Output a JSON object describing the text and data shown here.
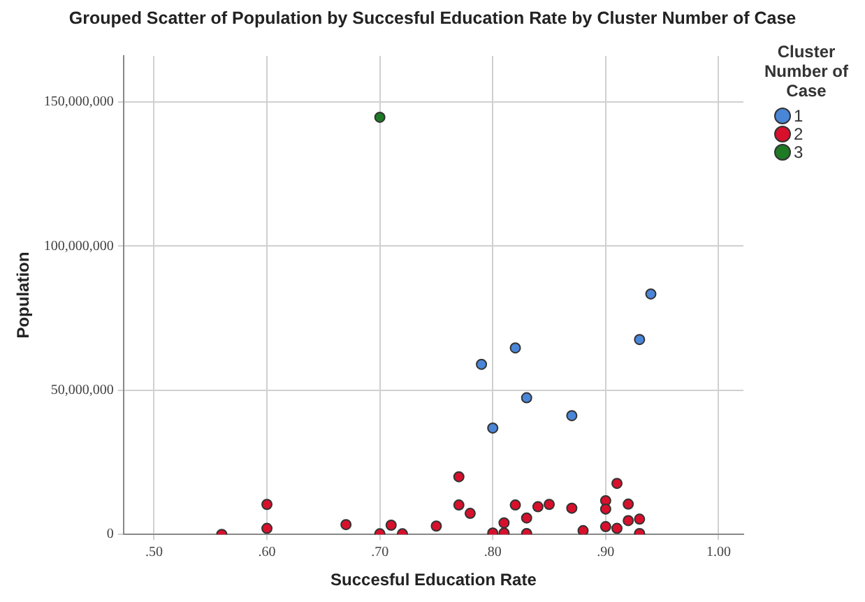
{
  "chart_data": {
    "type": "scatter",
    "title": "Grouped Scatter of Population by Succesful Education Rate by Cluster Number of Case",
    "xlabel": "Succesful Education Rate",
    "ylabel": "Population",
    "legend_title": "Cluster Number of Case",
    "legend": "top right",
    "grid": true,
    "marker": "circle",
    "xlim": [
      0.473,
      1.022
    ],
    "xticks": [
      {
        "value": 0.5,
        "label": ".50"
      },
      {
        "value": 0.6,
        "label": ".60"
      },
      {
        "value": 0.7,
        "label": ".70"
      },
      {
        "value": 0.8,
        "label": ".80"
      },
      {
        "value": 0.9,
        "label": ".90"
      },
      {
        "value": 1.0,
        "label": "1.00"
      }
    ],
    "ylim": [
      0,
      166000000
    ],
    "yticks": [
      {
        "value": 0,
        "label": "0"
      },
      {
        "value": 50000000,
        "label": "50,000,000"
      },
      {
        "value": 100000000,
        "label": "100,000,000"
      },
      {
        "value": 150000000,
        "label": "150,000,000"
      }
    ],
    "series": [
      {
        "name": "1",
        "color": "#4a86d8",
        "x": [
          0.94,
          0.93,
          0.82,
          0.79,
          0.83,
          0.87,
          0.8
        ],
        "values": [
          83400000,
          67600000,
          64700000,
          59000000,
          47400000,
          41200000,
          36900000
        ]
      },
      {
        "name": "2",
        "color": "#d8102c",
        "x": [
          0.56,
          0.6,
          0.6,
          0.67,
          0.7,
          0.71,
          0.72,
          0.75,
          0.77,
          0.77,
          0.78,
          0.8,
          0.81,
          0.81,
          0.82,
          0.83,
          0.83,
          0.84,
          0.85,
          0.87,
          0.88,
          0.9,
          0.9,
          0.9,
          0.91,
          0.91,
          0.92,
          0.92,
          0.93,
          0.93
        ],
        "values": [
          0,
          10400000,
          2100000,
          3400000,
          200000,
          3200000,
          200000,
          2900000,
          20000000,
          10200000,
          7300000,
          500000,
          4000000,
          500000,
          10200000,
          5700000,
          300000,
          9600000,
          10400000,
          9100000,
          1300000,
          11700000,
          8800000,
          2700000,
          17700000,
          2100000,
          10500000,
          4800000,
          5300000,
          300000
        ]
      },
      {
        "name": "3",
        "color": "#1e7a24",
        "x": [
          0.7
        ],
        "values": [
          144700000
        ]
      }
    ]
  }
}
